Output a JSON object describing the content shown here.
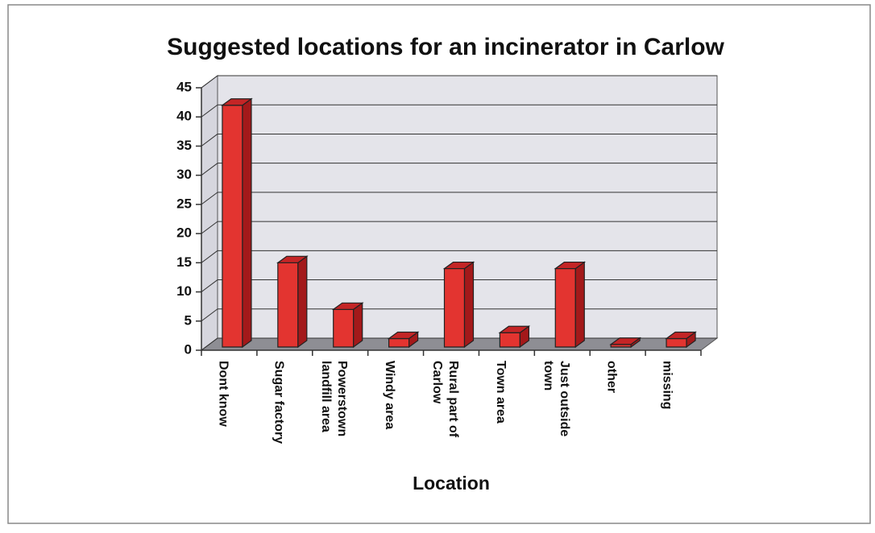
{
  "chart_data": {
    "type": "bar3d",
    "title": "Suggested locations for an incinerator in Carlow",
    "x_label": "Location",
    "categories": [
      "Dont know",
      "Sugar factory",
      "Powerstown\nlandfill area",
      "Windy area",
      "Rural part of\nCarlow",
      "Town area",
      "Just outside\ntown",
      "other",
      "missing"
    ],
    "values": [
      42,
      15,
      7,
      2,
      14,
      3,
      14,
      1,
      2
    ],
    "color": "#e33430",
    "ylim": [
      0,
      45
    ],
    "yticks": [
      0,
      5,
      10,
      15,
      20,
      25,
      30,
      35,
      40,
      45
    ],
    "grid": true
  }
}
